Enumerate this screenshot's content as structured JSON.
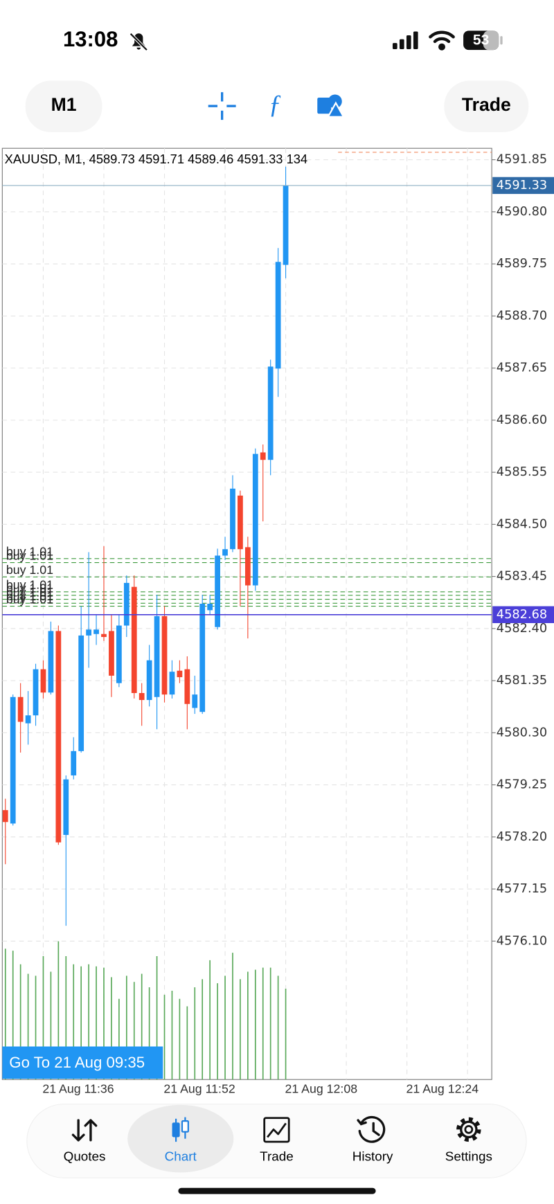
{
  "status_bar": {
    "time": "13:08",
    "battery": "53"
  },
  "toolbar": {
    "timeframe": "M1",
    "trade": "Trade"
  },
  "chart_data": {
    "type": "candlestick",
    "symbol": "XAUUSD, M1,",
    "categories": [
      null,
      null,
      null,
      null,
      null,
      "21 Aug 11:36",
      null,
      null,
      null,
      null,
      null,
      null,
      null,
      null,
      null,
      null,
      null,
      null,
      null,
      null,
      null,
      "21 Aug 11:52",
      null,
      null,
      null,
      null,
      null,
      null,
      null,
      null,
      null,
      null,
      null,
      null,
      null,
      null,
      null,
      "21 Aug 12:08",
      null,
      null,
      null,
      null,
      null,
      null,
      null,
      null,
      null,
      null,
      null,
      null,
      null,
      null,
      null,
      "21 Aug 12:24",
      null,
      null,
      null,
      null,
      null,
      null,
      null,
      null,
      null,
      null
    ],
    "open": [
      4578.74,
      4578.47,
      4581.02,
      4580.49,
      4580.65,
      4581.58,
      4581.11,
      4582.35,
      4578.24,
      4579.44,
      4579.93,
      4582.26,
      4582.29,
      4582.29,
      4582.35,
      4581.3,
      4582.46,
      4583.24,
      4581.1,
      4580.96,
      4581.02,
      4582.65,
      4581.07,
      4581.55,
      4581.58,
      4580.8,
      4580.72,
      4582.77,
      4582.43,
      4583.87,
      4584.0,
      4585.08,
      4584.04,
      4583.27,
      4585.95,
      4585.8,
      4587.64,
      4589.73,
      null,
      null,
      null,
      null,
      null,
      null,
      null,
      null,
      null,
      null,
      null,
      null,
      null,
      null,
      null,
      null,
      null,
      null,
      null,
      null,
      null,
      null,
      null,
      null,
      null,
      null
    ],
    "high": [
      4578.97,
      4581.07,
      4581.3,
      4581.14,
      4581.69,
      4581.76,
      4582.54,
      4582.46,
      4579.44,
      4580.21,
      4582.85,
      4583.94,
      4582.69,
      4584.06,
      4582.69,
      4582.69,
      4583.47,
      4583.47,
      4581.3,
      4582.07,
      4583.08,
      4582.85,
      4581.76,
      4581.76,
      4581.84,
      4581.45,
      4583.08,
      4583.08,
      4584.01,
      4584.25,
      4585.49,
      4585.18,
      4584.25,
      4586.03,
      4586.11,
      4587.82,
      4590.07,
      4591.71,
      null,
      null,
      null,
      null,
      null,
      null,
      null,
      null,
      null,
      null,
      null,
      null,
      null,
      null,
      null,
      null,
      null,
      null,
      null,
      null,
      null,
      null,
      null,
      null,
      null,
      null
    ],
    "low": [
      4577.65,
      4578.43,
      4579.9,
      4580.06,
      4580.44,
      4580.99,
      4581.07,
      4578.04,
      4576.41,
      4579.36,
      4579.9,
      4581.61,
      4582.07,
      4582.15,
      4581.02,
      4581.22,
      4582.23,
      4580.99,
      4580.44,
      4580.83,
      4580.37,
      4580.91,
      4580.99,
      4581.3,
      4580.37,
      4580.68,
      4580.68,
      4582.69,
      4582.38,
      4583.78,
      4583.94,
      4582.85,
      4582.2,
      4583.16,
      4584.56,
      4585.49,
      4587.07,
      4589.46,
      null,
      null,
      null,
      null,
      null,
      null,
      null,
      null,
      null,
      null,
      null,
      null,
      null,
      null,
      null,
      null,
      null,
      null,
      null,
      null,
      null,
      null,
      null,
      null,
      null,
      null
    ],
    "close": [
      4578.5,
      4581.02,
      4580.52,
      4580.65,
      4581.58,
      4581.11,
      4582.35,
      4578.09,
      4579.36,
      4579.93,
      4582.26,
      4582.38,
      4582.38,
      4582.23,
      4581.45,
      4582.46,
      4583.32,
      4581.1,
      4580.96,
      4581.76,
      4582.65,
      4581.07,
      4581.53,
      4581.42,
      4580.88,
      4581.07,
      4582.9,
      4582.9,
      4583.87,
      4584.0,
      4585.22,
      4584.0,
      4583.27,
      4585.92,
      4585.8,
      4587.68,
      4589.79,
      4591.33,
      null,
      null,
      null,
      null,
      null,
      null,
      null,
      null,
      null,
      null,
      null,
      null,
      null,
      null,
      null,
      null,
      null,
      null,
      null,
      null,
      null,
      null,
      null,
      null,
      null,
      null
    ],
    "volume": [
      193,
      190,
      170,
      156,
      153,
      182,
      159,
      204,
      182,
      170,
      167,
      170,
      167,
      165,
      151,
      119,
      153,
      144,
      156,
      136,
      182,
      125,
      131,
      119,
      108,
      136,
      148,
      176,
      142,
      153,
      187,
      148,
      159,
      162,
      165,
      165,
      153,
      134,
      null,
      null,
      null,
      null,
      null,
      null,
      null,
      null,
      null,
      null,
      null,
      null,
      null,
      null,
      null,
      null,
      null,
      null,
      null,
      null,
      null,
      null,
      null,
      null,
      null,
      null
    ],
    "up_color": "#2196f3",
    "down_color": "#f4452e",
    "volume_color": "#58a858",
    "ylim": [
      4573.31,
      4592.08
    ],
    "yticks": [
      4591.85,
      {
        "value": 4590.8,
        "label": "4590.80"
      },
      4589.75,
      {
        "value": 4588.7,
        "label": "4588.70"
      },
      4587.65,
      {
        "value": 4586.6,
        "label": "4586.60"
      },
      4585.55,
      {
        "value": 4584.5,
        "label": "4584.50"
      },
      4583.45,
      {
        "value": 4582.4,
        "label": "4582.40"
      },
      4581.35,
      {
        "value": 4580.3,
        "label": "4580.30"
      },
      4579.25,
      {
        "value": 4578.2,
        "label": "4578.20"
      },
      4577.15,
      {
        "value": 4576.1,
        "label": "4576.10"
      }
    ],
    "grid": true,
    "ask": 4592.0,
    "price_line": 4582.68,
    "orders": [
      {
        "label": "buy 1.01",
        "price": 4583.81
      },
      {
        "label": "buy 1.01",
        "price": 4583.73
      },
      {
        "label": "buy 1.01",
        "price": 4583.44
      },
      {
        "label": "buy 1.01",
        "price": 4583.14
      },
      {
        "label": "buy 1.01",
        "price": 4583.07
      },
      {
        "label": "buy 1.01",
        "price": 4582.99
      },
      {
        "label": "buy 1.01",
        "price": 4582.91
      },
      {
        "label": "buy 1.01",
        "price": 4582.85
      }
    ],
    "goto": "Go To 21 Aug 09:35"
  },
  "nav": {
    "items": [
      "Quotes",
      "Chart",
      "Trade",
      "History",
      "Settings"
    ]
  }
}
